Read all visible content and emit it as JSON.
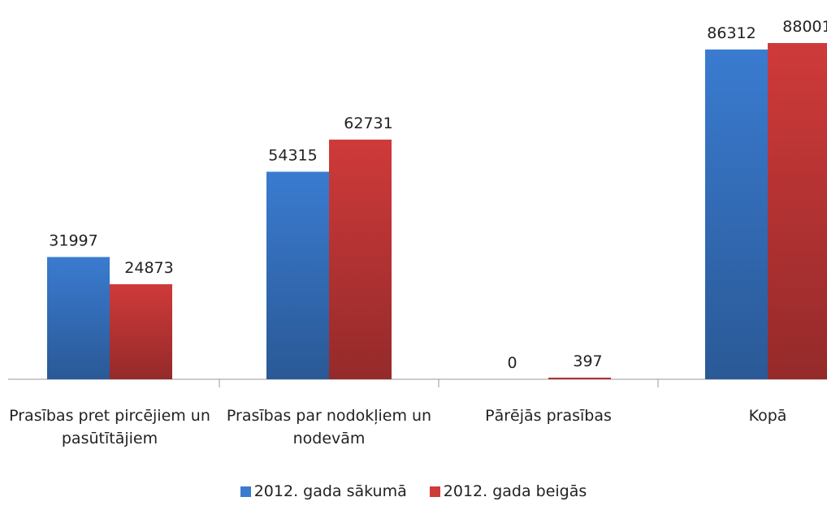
{
  "chart_data": {
    "type": "bar",
    "categories": [
      "Prasības pret pircējiem un pasūtītājiem",
      "Prasības par nodokļiem un nodevām",
      "Pārējās prasības",
      "Kopā"
    ],
    "series": [
      {
        "name": "2012. gada sākumā",
        "color": "#3a7bd0",
        "values": [
          31997,
          54315,
          0,
          86312
        ]
      },
      {
        "name": "2012. gada beigās",
        "color": "#cf3a3a",
        "values": [
          24873,
          62731,
          397,
          88001
        ]
      }
    ]
  }
}
